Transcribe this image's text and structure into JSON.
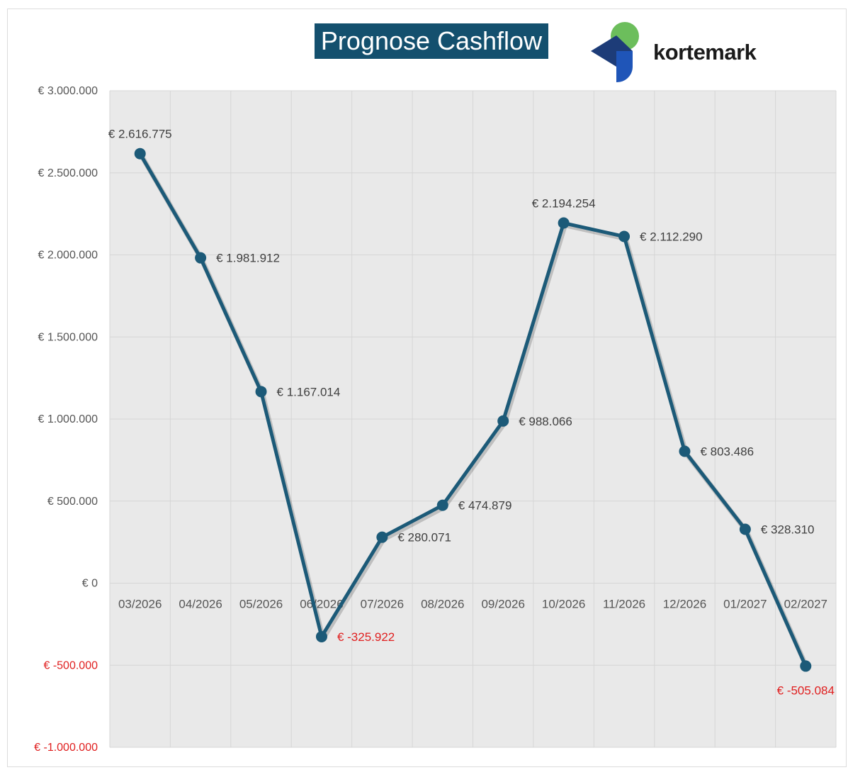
{
  "chart_data": {
    "type": "line",
    "title": "Prognose Cashflow",
    "categories": [
      "03/2026",
      "04/2026",
      "05/2026",
      "06/2026",
      "07/2026",
      "08/2026",
      "09/2026",
      "10/2026",
      "11/2026",
      "12/2026",
      "01/2027",
      "02/2027"
    ],
    "values": [
      2616775,
      1981912,
      1167014,
      -325922,
      280071,
      474879,
      988066,
      2194254,
      2112290,
      803486,
      328310,
      -505084
    ],
    "data_labels": [
      "€ 2.616.775",
      "€ 1.981.912",
      "€ 1.167.014",
      "€ -325.922",
      "€ 280.071",
      "€ 474.879",
      "€ 988.066",
      "€ 2.194.254",
      "€ 2.112.290",
      "€ 803.486",
      "€ 328.310",
      "€ -505.084"
    ],
    "ylim": [
      -1000000,
      3000000
    ],
    "y_ticks": [
      3000000,
      2500000,
      2000000,
      1500000,
      1000000,
      500000,
      0,
      -500000,
      -1000000
    ],
    "y_tick_labels": [
      "€ 3.000.000",
      "€ 2.500.000",
      "€ 2.000.000",
      "€ 1.500.000",
      "€ 1.000.000",
      "€ 500.000",
      "€ 0",
      "€ -500.000",
      "€ -1.000.000"
    ],
    "grid": true,
    "legend": "none",
    "colors": {
      "line": "#1c5a78",
      "negative": "#e02020",
      "plot_bg": "#e9e9e9",
      "title_bg": "#14506e"
    }
  },
  "logo": {
    "text": "kortemark",
    "colors": {
      "green": "#6cbe5c",
      "dark_blue": "#1d3c78",
      "blue": "#1f55b8"
    }
  }
}
